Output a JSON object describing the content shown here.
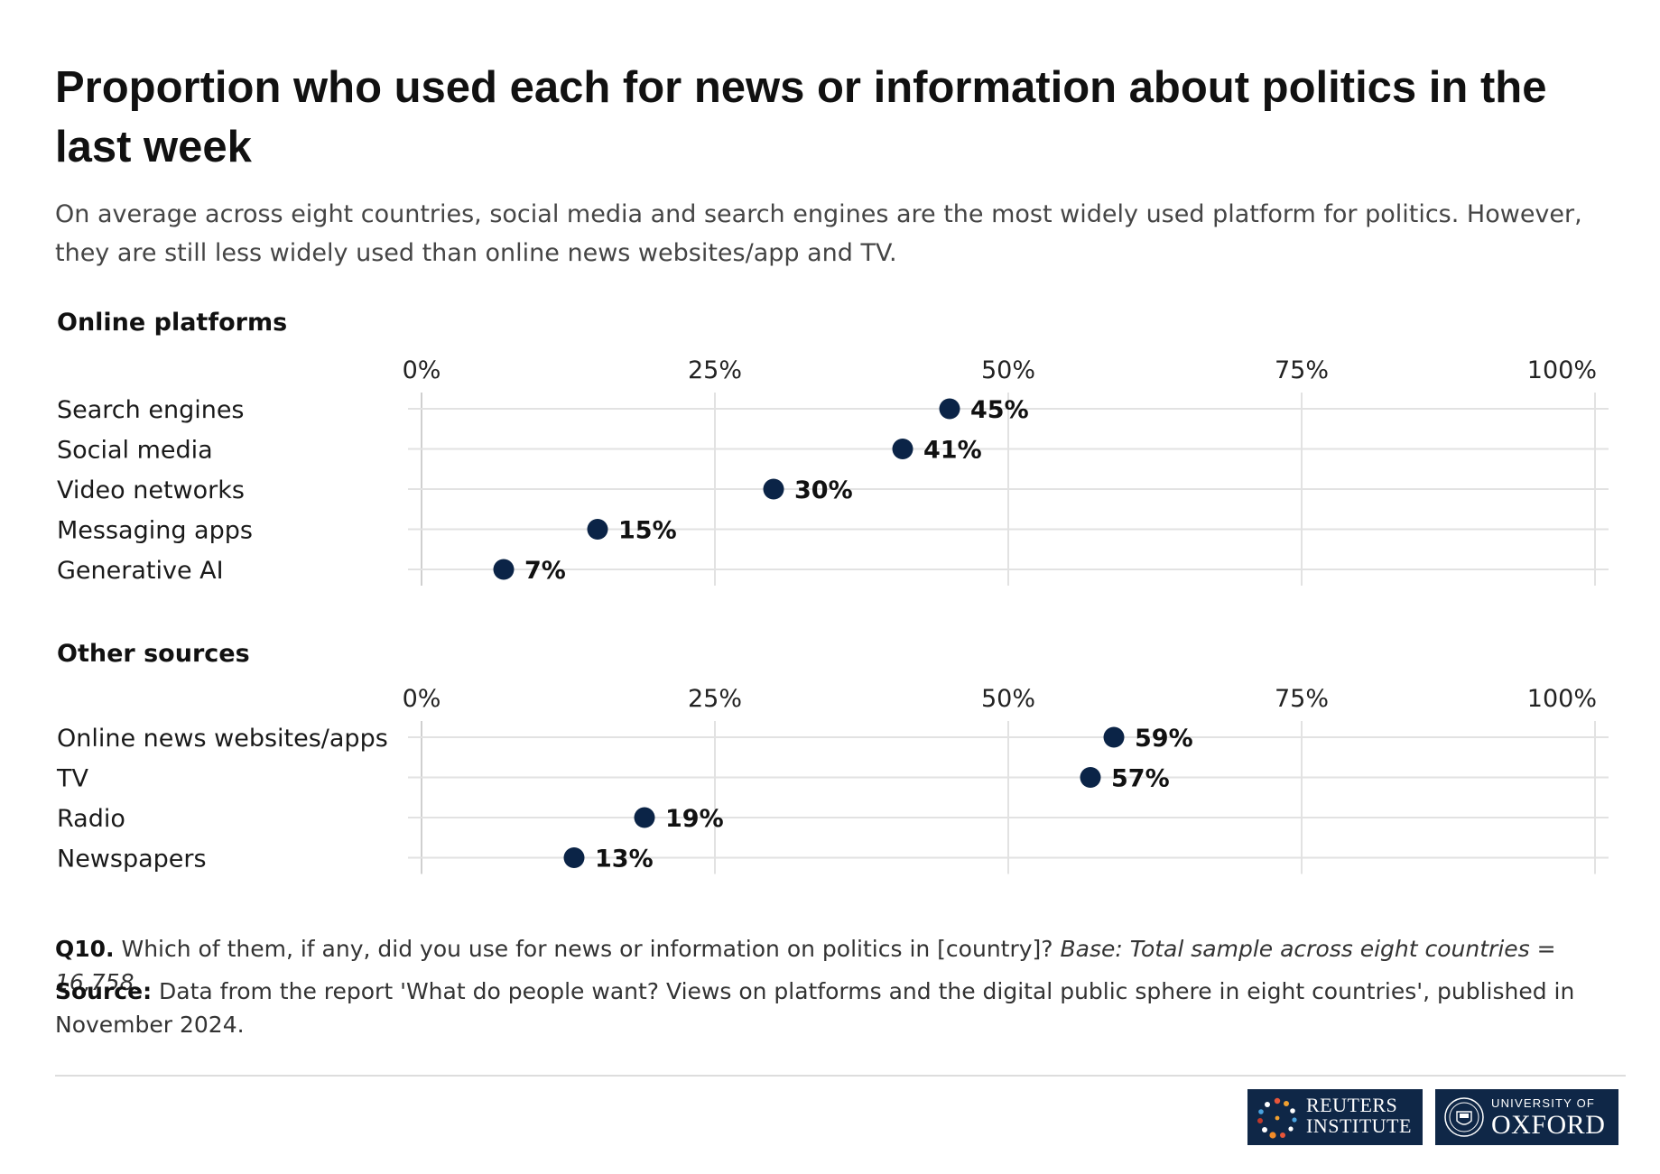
{
  "title": "Proportion who used each for news or information about politics in the last week",
  "subtitle": "On average across eight countries, social media and search engines are the most widely used platform for politics. However, they are still less widely used than online news websites/app and TV.",
  "colors": {
    "dot": "#0b2447",
    "grid": "#e2e2e2",
    "zero_line": "#cfcfcf",
    "logo_bg": "#0f2747"
  },
  "chart_data": [
    {
      "type": "scatter",
      "title": "Online platforms",
      "x_ticks": [
        "0%",
        "25%",
        "50%",
        "75%",
        "100%"
      ],
      "xlim": [
        0,
        100
      ],
      "categories": [
        "Search engines",
        "Social media",
        "Video networks",
        "Messaging apps",
        "Generative AI"
      ],
      "values": [
        45,
        41,
        30,
        15,
        7
      ],
      "value_labels": [
        "45%",
        "41%",
        "30%",
        "15%",
        "7%"
      ],
      "grid": true
    },
    {
      "type": "scatter",
      "title": "Other sources",
      "x_ticks": [
        "0%",
        "25%",
        "50%",
        "75%",
        "100%"
      ],
      "xlim": [
        0,
        100
      ],
      "categories": [
        "Online news websites/apps",
        "TV",
        "Radio",
        "Newspapers"
      ],
      "values": [
        59,
        57,
        19,
        13
      ],
      "value_labels": [
        "59%",
        "57%",
        "19%",
        "13%"
      ],
      "grid": true
    }
  ],
  "footnote": {
    "q_label": "Q10.",
    "question": " Which of them, if any, did you use for news or information on politics in [country]? ",
    "base": "Base: Total sample across eight countries = 16,758."
  },
  "source": {
    "label": "Source:",
    "text": " Data from the report 'What do people want? Views on platforms and the digital public sphere in eight countries', published in November 2024."
  },
  "logos": {
    "reuters": {
      "line1": "REUTERS",
      "line2": "INSTITUTE"
    },
    "oxford": {
      "line1": "UNIVERSITY OF",
      "line2": "OXFORD"
    }
  }
}
